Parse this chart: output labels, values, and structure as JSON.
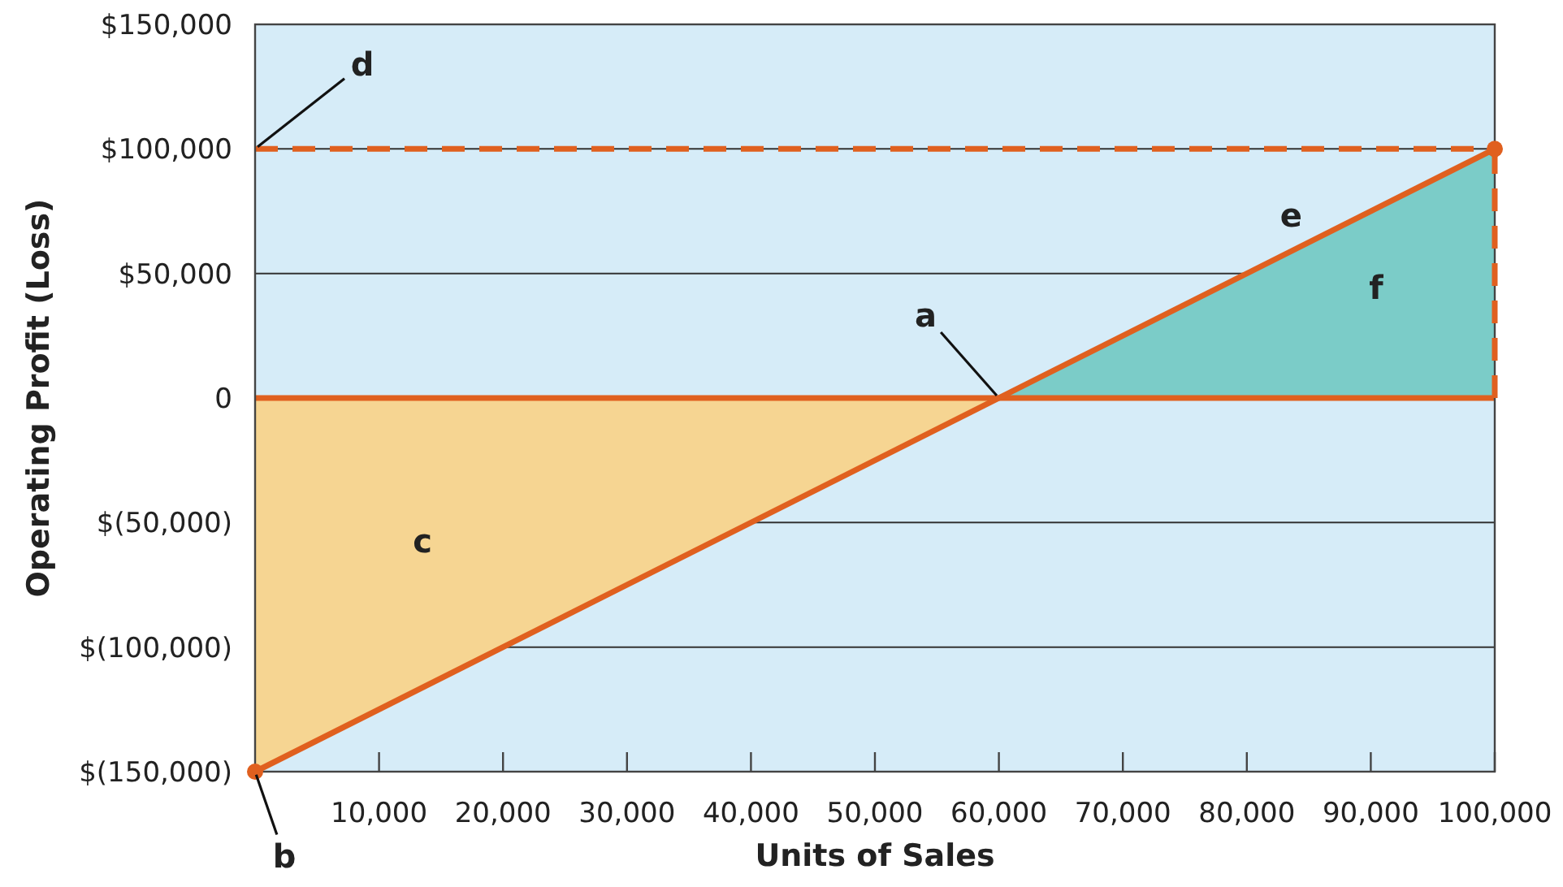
{
  "chart_data": {
    "type": "line",
    "xlabel": "Units of Sales",
    "ylabel": "Operating Profit (Loss)",
    "xlim": [
      0,
      100000
    ],
    "ylim": [
      -150000,
      150000
    ],
    "xticks": [
      {
        "value": 10000,
        "label": "10,000"
      },
      {
        "value": 20000,
        "label": "20,000"
      },
      {
        "value": 30000,
        "label": "30,000"
      },
      {
        "value": 40000,
        "label": "40,000"
      },
      {
        "value": 50000,
        "label": "50,000"
      },
      {
        "value": 60000,
        "label": "60,000"
      },
      {
        "value": 70000,
        "label": "70,000"
      },
      {
        "value": 80000,
        "label": "80,000"
      },
      {
        "value": 90000,
        "label": "90,000"
      },
      {
        "value": 100000,
        "label": "100,000"
      }
    ],
    "yticks": [
      {
        "value": 150000,
        "label": "$150,000"
      },
      {
        "value": 100000,
        "label": "$100,000"
      },
      {
        "value": 50000,
        "label": "$50,000"
      },
      0,
      {
        "value": -50000,
        "label": "$(50,000)"
      },
      {
        "value": -100000,
        "label": "$(100,000)"
      },
      {
        "value": -150000,
        "label": "$(150,000)"
      }
    ],
    "grid": "y",
    "series": [
      {
        "type": "area",
        "color": "#f6d592",
        "x": [
          0,
          60000
        ],
        "values": [
          -150000,
          0
        ]
      },
      {
        "type": "area",
        "color": "#7bccc8",
        "x": [
          60000,
          100000
        ],
        "values": [
          0,
          100000
        ]
      },
      {
        "type": "line",
        "color": "#e0601f",
        "x": [
          100000,
          100000
        ],
        "values": [
          0,
          100000
        ],
        "line_style": "dashed"
      },
      {
        "color": "#e0601f",
        "x": [
          0,
          100000
        ],
        "values": [
          -150000,
          100000
        ],
        "marker": "circle"
      }
    ],
    "ref_lines": [
      {
        "axis": "y",
        "value": 0,
        "color": "#e0601f",
        "line_style": "solid"
      },
      {
        "axis": "y",
        "value": 100000,
        "color": "#e0601f",
        "line_style": "dashed"
      }
    ],
    "annotations": [
      {
        "text": "a",
        "x": 60000,
        "y": 0
      },
      {
        "text": "b",
        "x": 0,
        "y": -150000
      },
      "c",
      {
        "text": "d",
        "x": 0,
        "y": 100000
      },
      {
        "text": "e",
        "x": 82000,
        "y": 55000
      },
      "f"
    ]
  }
}
